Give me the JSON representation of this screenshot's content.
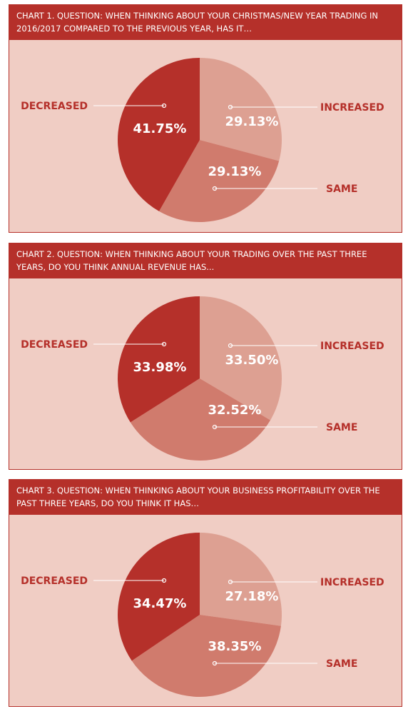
{
  "colors": {
    "decreased": "#b5302a",
    "increased": "#dda092",
    "same": "#d07b6d",
    "header_bg": "#b5302a",
    "panel_bg": "#f0cdc4",
    "label_text": "#b5302a"
  },
  "chart_data": [
    {
      "type": "pie",
      "title": "CHART 1. QUESTION: WHEN THINKING ABOUT YOUR CHRISTMAS/NEW YEAR TRADING IN 2016/2017 COMPARED TO THE PREVIOUS YEAR, HAS IT…",
      "slices": [
        {
          "label": "INCREASED",
          "value": 29.13,
          "display": "29.13%"
        },
        {
          "label": "SAME",
          "value": 29.13,
          "display": "29.13%"
        },
        {
          "label": "DECREASED",
          "value": 41.75,
          "display": "41.75%"
        }
      ]
    },
    {
      "type": "pie",
      "title": "CHART 2. QUESTION: WHEN THINKING ABOUT YOUR TRADING OVER THE PAST THREE YEARS, DO YOU THINK ANNUAL REVENUE HAS...",
      "slices": [
        {
          "label": "INCREASED",
          "value": 33.5,
          "display": "33.50%"
        },
        {
          "label": "SAME",
          "value": 32.52,
          "display": "32.52%"
        },
        {
          "label": "DECREASED",
          "value": 33.98,
          "display": "33.98%"
        }
      ]
    },
    {
      "type": "pie",
      "title": "CHART 3. QUESTION: WHEN THINKING ABOUT YOUR BUSINESS PROFITABILITY OVER THE PAST THREE YEARS, DO YOU THINK IT HAS…",
      "slices": [
        {
          "label": "INCREASED",
          "value": 27.18,
          "display": "27.18%"
        },
        {
          "label": "SAME",
          "value": 38.35,
          "display": "38.35%"
        },
        {
          "label": "DECREASED",
          "value": 34.47,
          "display": "34.47%"
        }
      ]
    }
  ]
}
